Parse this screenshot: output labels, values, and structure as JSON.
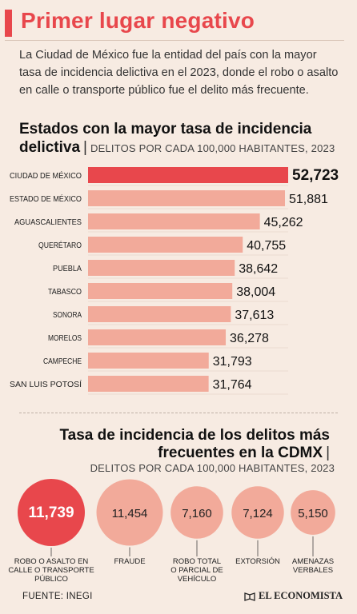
{
  "header": {
    "title": "Primer lugar negativo",
    "intro": "La Ciudad de México fue la entidad del país con la mayor tasa de incidencia delictiva en el 2023, donde el robo o asalto en calle o transporte público fue el delito más frecuente."
  },
  "chart1_heading": {
    "title": "Estados con la mayor tasa de incidencia delictiva",
    "separator": "|",
    "subtitle": "DELITOS POR CADA 100,000 HABITANTES, 2023"
  },
  "chart2_heading": {
    "title": "Tasa de incidencia de los delitos más frecuentes en la CDMX",
    "separator": "|",
    "subtitle": "DELITOS POR CADA 100,000 HABITANTES, 2023"
  },
  "footer": {
    "source": "FUENTE: INEGI",
    "brand": "EL ECONOMISTA"
  },
  "colors": {
    "background": "#f7ebe2",
    "accent": "#e8474c",
    "bar": "#f2aa9a",
    "highlight_circle": "#e8474c",
    "circle": "#f2aa9a"
  },
  "chart_data": [
    {
      "type": "bar",
      "orientation": "horizontal",
      "title": "Estados con la mayor tasa de incidencia delictiva",
      "subtitle": "DELITOS POR CADA 100,000 HABITANTES, 2023",
      "categories": [
        "CIUDAD DE MÉXICO",
        "ESTADO DE MÉXICO",
        "AGUASCALIENTES",
        "QUERÉTARO",
        "PUEBLA",
        "TABASCO",
        "SONORA",
        "MORELOS",
        "CAMPECHE",
        "SAN LUIS POTOSÍ"
      ],
      "values": [
        52723,
        51881,
        45262,
        40755,
        38642,
        38004,
        37613,
        36278,
        31793,
        31764
      ],
      "labels": [
        "52,723",
        "51,881",
        "45,262",
        "40,755",
        "38,642",
        "38,004",
        "37,613",
        "36,278",
        "31,793",
        "31,764"
      ],
      "highlight_index": 0,
      "grid": false
    },
    {
      "type": "bubble",
      "title": "Tasa de incidencia de los delitos más frecuentes en la CDMX",
      "subtitle": "DELITOS POR CADA 100,000 HABITANTES, 2023",
      "categories": [
        "ROBO O ASALTO EN CALLE O TRANSPORTE PÚBLICO",
        "FRAUDE",
        "ROBO TOTAL O PARCIAL DE VEHÍCULO",
        "EXTORSIÓN",
        "AMENAZAS VERBALES"
      ],
      "category_lines": [
        [
          "ROBO O ASALTO EN",
          "CALLE O TRANSPORTE",
          "PÚBLICO"
        ],
        [
          "FRAUDE"
        ],
        [
          "ROBO TOTAL",
          "O PARCIAL DE",
          "VEHÍCULO"
        ],
        [
          "EXTORSIÓN"
        ],
        [
          "AMENAZAS",
          "VERBALES"
        ]
      ],
      "values": [
        11739,
        11454,
        7160,
        7124,
        5150
      ],
      "labels": [
        "11,739",
        "11,454",
        "7,160",
        "7,124",
        "5,150"
      ],
      "highlight_index": 0
    }
  ]
}
